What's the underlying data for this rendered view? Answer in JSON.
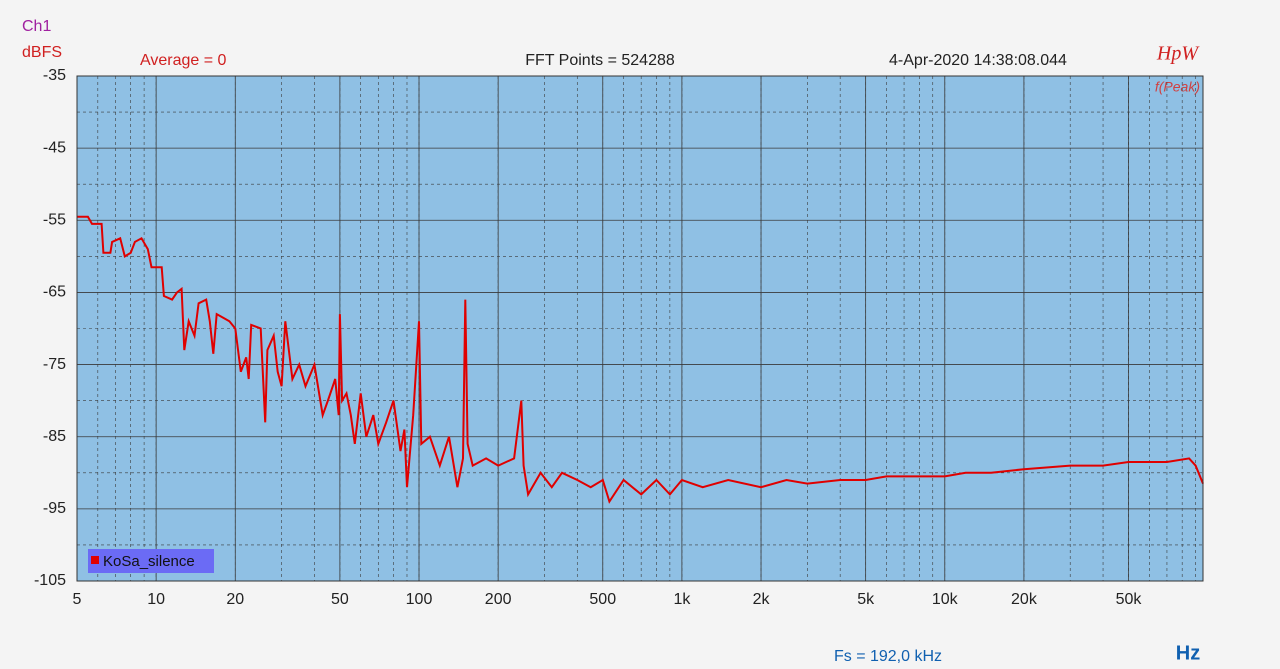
{
  "chart_data": {
    "type": "line",
    "channel": "Ch1",
    "y_label": "dBFS",
    "x_label": "Hz",
    "annotations": {
      "average": "Average = 0",
      "fft_points": "FFT Points = 524288",
      "timestamp": "4-Apr-2020 14:38:08.044",
      "brand": "HpW",
      "mode": "f(Peak)",
      "sample_rate": "Fs = 192,0 kHz"
    },
    "log_x": true,
    "grid": true,
    "minor_grid": true,
    "legend": "lower left",
    "xlim": [
      5,
      96000
    ],
    "ylim": [
      -105,
      -35
    ],
    "xticks": [
      5,
      10,
      20,
      50,
      100,
      200,
      500,
      {
        "value": 1000,
        "label": "1k"
      },
      {
        "value": 2000,
        "label": "2k"
      },
      {
        "value": 5000,
        "label": "5k"
      },
      {
        "value": 10000,
        "label": "10k"
      },
      {
        "value": 20000,
        "label": "20k"
      },
      {
        "value": 50000,
        "label": "50k"
      }
    ],
    "yticks": [
      -35,
      -45,
      -55,
      -65,
      -75,
      -85,
      -95,
      -105
    ],
    "x": [
      5,
      5.5,
      5.7,
      6.2,
      6.3,
      6.7,
      6.8,
      7.3,
      7.6,
      8,
      8.3,
      8.8,
      9.3,
      9.6,
      10.5,
      10.7,
      11.5,
      12,
      12.5,
      12.8,
      13.3,
      14,
      14.5,
      15.5,
      16,
      16.5,
      17,
      18,
      19,
      20,
      21,
      22,
      22.5,
      23,
      25,
      26,
      26.5,
      28,
      29,
      30,
      31,
      33,
      35,
      37,
      40,
      43,
      45,
      48,
      49.5,
      50,
      51,
      53,
      55,
      57,
      60,
      63,
      67,
      70,
      75,
      80,
      85,
      88,
      90,
      95,
      100,
      102,
      110,
      120,
      130,
      140,
      147,
      150,
      153,
      160,
      180,
      200,
      230,
      245,
      250,
      260,
      290,
      320,
      350,
      400,
      450,
      500,
      530,
      600,
      700,
      800,
      900,
      1000,
      1200,
      1500,
      2000,
      2500,
      3000,
      4000,
      5000,
      6000,
      8000,
      10000,
      12000,
      15000,
      20000,
      30000,
      40000,
      50000,
      70000,
      85000,
      90000,
      96000
    ],
    "series": [
      {
        "name": "KoSa_silence",
        "color": "#e00000",
        "values": [
          -54.5,
          -54.5,
          -55.5,
          -55.5,
          -59.5,
          -59.5,
          -58,
          -57.5,
          -60,
          -59.5,
          -58,
          -57.5,
          -59,
          -61.5,
          -61.5,
          -65.5,
          -66,
          -65,
          -64.5,
          -73,
          -69,
          -71,
          -66.5,
          -66,
          -69,
          -73.5,
          -68,
          -68.5,
          -69,
          -70,
          -76,
          -74,
          -77,
          -69.5,
          -70,
          -83,
          -73,
          -71,
          -76,
          -78,
          -69,
          -77,
          -75,
          -78,
          -75,
          -82,
          -80,
          -77,
          -82,
          -68,
          -80,
          -79,
          -82,
          -86,
          -79,
          -85,
          -82,
          -86,
          -83,
          -80,
          -87,
          -84,
          -92,
          -82,
          -69,
          -86,
          -85,
          -89,
          -85,
          -92,
          -88,
          -66,
          -86,
          -89,
          -88,
          -89,
          -88,
          -80,
          -89,
          -93,
          -90,
          -92,
          -90,
          -91,
          -92,
          -91,
          -94,
          -91,
          -93,
          -91,
          -93,
          -91,
          -92,
          -91,
          -92,
          -91,
          -91.5,
          -91,
          -91,
          -90.5,
          -90.5,
          -90.5,
          -90,
          -90,
          -89.5,
          -89,
          -89,
          -88.5,
          -88.5,
          -88,
          -89,
          -91.5
        ]
      }
    ]
  }
}
